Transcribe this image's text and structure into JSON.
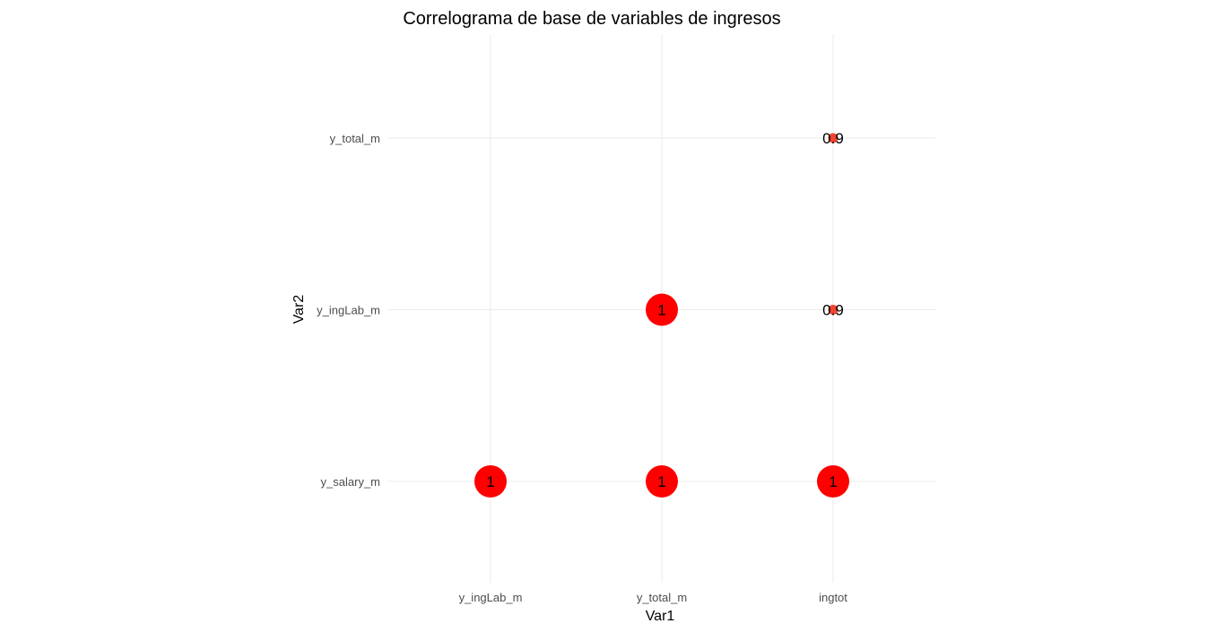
{
  "chart_data": {
    "type": "scatter",
    "title": "Correlograma de base de variables de ingresos",
    "xlabel": "Var1",
    "ylabel": "Var2",
    "x_categories": [
      "y_ingLab_m",
      "y_total_m",
      "ingtot"
    ],
    "y_categories": [
      "y_salary_m",
      "y_ingLab_m",
      "y_total_m"
    ],
    "grid": true,
    "legend": "none",
    "points": [
      {
        "x": "y_ingLab_m",
        "y": "y_salary_m",
        "value": 1,
        "label": "1",
        "color": "#ff0000"
      },
      {
        "x": "y_total_m",
        "y": "y_salary_m",
        "value": 1,
        "label": "1",
        "color": "#ff0000"
      },
      {
        "x": "ingtot",
        "y": "y_salary_m",
        "value": 1,
        "label": "1",
        "color": "#ff0000"
      },
      {
        "x": "y_total_m",
        "y": "y_ingLab_m",
        "value": 1,
        "label": "1",
        "color": "#ff0000"
      },
      {
        "x": "ingtot",
        "y": "y_ingLab_m",
        "value": 0.9,
        "label": "0.9",
        "color": "#f04530"
      },
      {
        "x": "ingtot",
        "y": "y_total_m",
        "value": 0.9,
        "label": "0.9",
        "color": "#f04530"
      }
    ]
  }
}
